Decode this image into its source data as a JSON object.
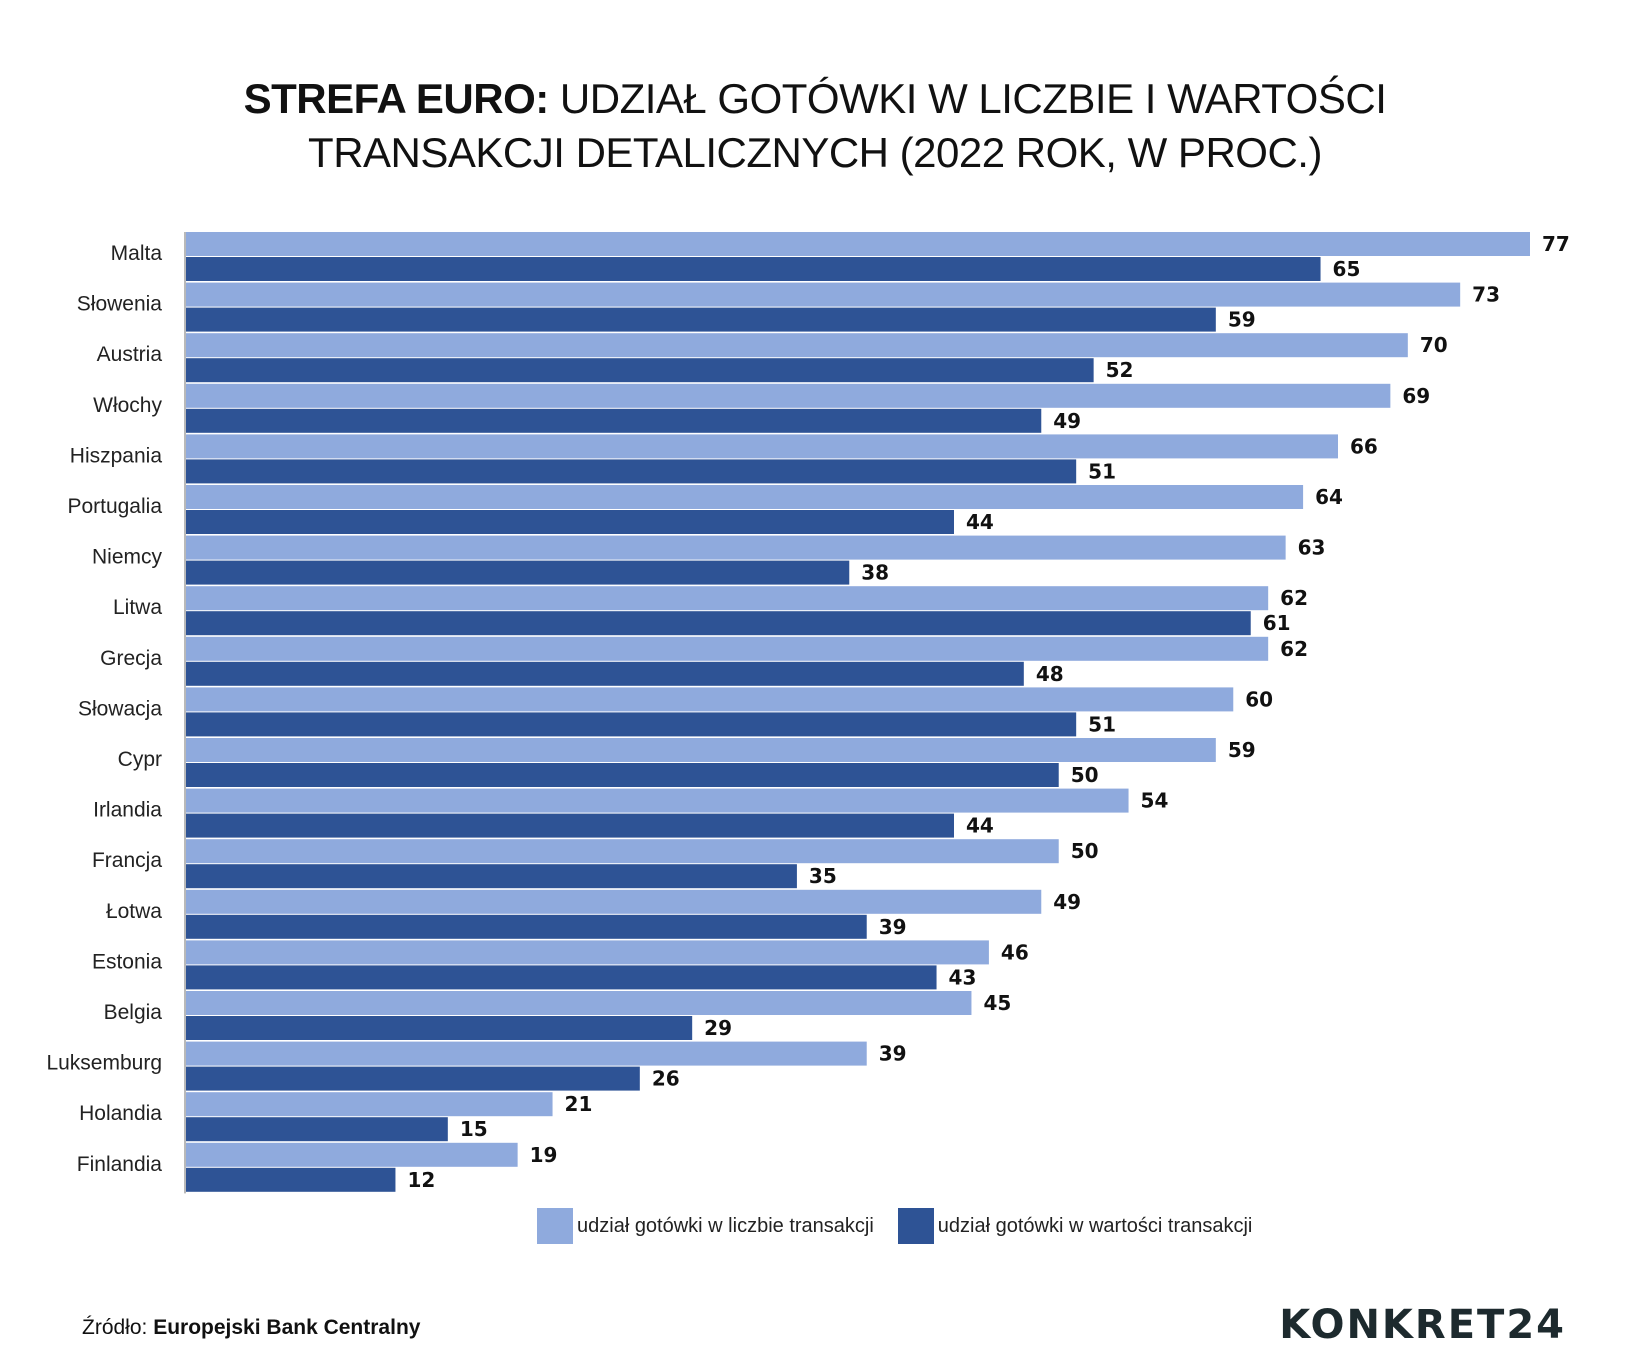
{
  "header": {
    "title_bold": "STREFA EURO:",
    "title_rest": "UDZIAŁ GOTÓWKI W LICZBIE I WARTOŚCI",
    "title_line2": "TRANSAKCJI DETALICZNYCH (2022 ROK, W PROC.)"
  },
  "legend": {
    "items": [
      {
        "label": "udział gotówki w liczbie transakcji",
        "color": "#8faadd"
      },
      {
        "label": "udział gotówki w wartości transakcji",
        "color": "#2e5395"
      }
    ]
  },
  "footer": {
    "source_prefix": "Źródło:",
    "source_name": "Europejski Bank Centralny",
    "logo": "KONKRET24"
  },
  "chart_data": {
    "type": "bar",
    "orientation": "horizontal",
    "title": "STREFA EURO: UDZIAŁ GOTÓWKI W LICZBIE I WARTOŚCI TRANSAKCJI DETALICZNYCH (2022 ROK, W PROC.)",
    "categories": [
      "Malta",
      "Słowenia",
      "Austria",
      "Włochy",
      "Hiszpania",
      "Portugalia",
      "Niemcy",
      "Litwa",
      "Grecja",
      "Słowacja",
      "Cypr",
      "Irlandia",
      "Francja",
      "Łotwa",
      "Estonia",
      "Belgia",
      "Luksemburg",
      "Holandia",
      "Finlandia"
    ],
    "series": [
      {
        "name": "udział gotówki w liczbie transakcji",
        "color": "#8faadd",
        "values": [
          77,
          73,
          70,
          69,
          66,
          64,
          63,
          62,
          62,
          60,
          59,
          54,
          50,
          49,
          46,
          45,
          39,
          21,
          19
        ]
      },
      {
        "name": "udział gotówki w wartości transakcji",
        "color": "#2e5395",
        "values": [
          65,
          59,
          52,
          49,
          51,
          44,
          38,
          61,
          48,
          51,
          50,
          44,
          35,
          39,
          43,
          29,
          26,
          15,
          12
        ]
      }
    ],
    "xlim": [
      0,
      77
    ],
    "grid": false,
    "legend_position": "bottom",
    "data_labels": true
  }
}
